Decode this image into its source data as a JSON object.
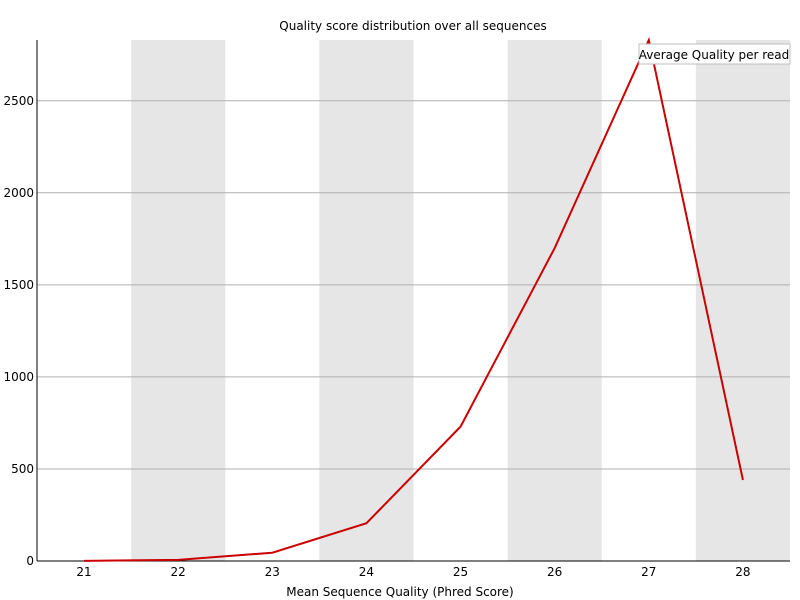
{
  "chart_data": {
    "type": "line",
    "title": "Quality score distribution over all sequences",
    "xlabel": "Mean Sequence Quality (Phred Score)",
    "ylabel": "",
    "x": [
      21,
      22,
      23,
      24,
      25,
      26,
      27,
      28
    ],
    "xlim": [
      20.5,
      28.5
    ],
    "ylim": [
      0,
      2830
    ],
    "yticks": [
      0,
      500,
      1000,
      1500,
      2000,
      2500
    ],
    "grid": true,
    "legend_position": "top-right",
    "series": [
      {
        "name": "Average Quality per read",
        "values": [
          1,
          6,
          45,
          205,
          730,
          1700,
          2830,
          440
        ],
        "color": "#cc0000"
      }
    ],
    "band_color": "#e6e6e6",
    "grid_color": "#b0b0b0"
  }
}
